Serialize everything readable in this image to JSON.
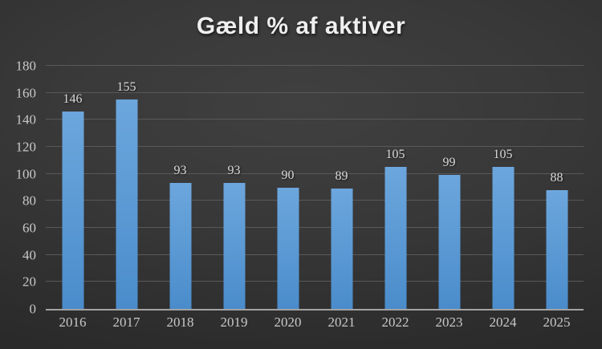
{
  "slide": {
    "title": "Gæld % af aktiver"
  },
  "chart_data": {
    "type": "bar",
    "title": "Gæld % af aktiver",
    "categories": [
      "2016",
      "2017",
      "2018",
      "2019",
      "2020",
      "2021",
      "2022",
      "2023",
      "2024",
      "2025"
    ],
    "values": [
      146,
      155,
      93,
      93,
      90,
      89,
      105,
      99,
      105,
      88
    ],
    "xlabel": "",
    "ylabel": "",
    "ylim": [
      0,
      180
    ],
    "ytick_step": 20,
    "grid": true,
    "legend": false,
    "data_labels": true,
    "colors": {
      "bar_gradient_top": "#6ca6dd",
      "bar_gradient_bottom": "#4a8ccb",
      "background_center": "#404040",
      "background_edge": "#242424",
      "gridline": "#595959",
      "axis_line": "#a3a3a3",
      "tick_label": "#c8c8c8",
      "data_label": "#d9d9d9",
      "title_text": "#efefef"
    }
  }
}
